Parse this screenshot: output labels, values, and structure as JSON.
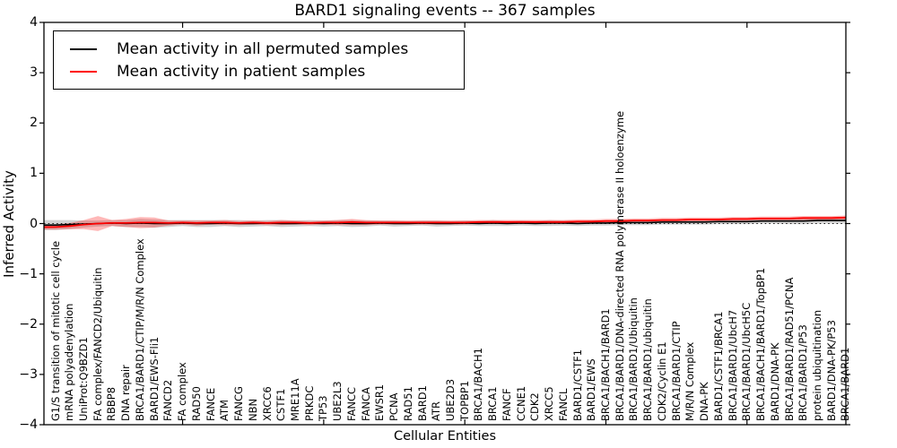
{
  "title": "BARD1 signaling events -- 367 samples",
  "chart_data": {
    "type": "line",
    "title": "BARD1 signaling events -- 367 samples",
    "xlabel": "Cellular Entities",
    "ylabel": "Inferred Activity",
    "ylim": [
      -4,
      4
    ],
    "yticks": [
      4,
      3,
      2,
      1,
      0,
      -1,
      -2,
      -3,
      -4
    ],
    "xtick_indices": [
      9,
      19,
      29,
      39,
      49
    ],
    "grid": false,
    "legend_position": "upper left",
    "zero_line": {
      "y": 0,
      "style": "dotted",
      "color": "#1a1a1a"
    },
    "categories": [
      "G1/S transition of mitotic cell cycle",
      "mRNA polyadenylation",
      "UniProt:Q9BZD1",
      "FA complex/FANCD2/Ubiquitin",
      "RBBP8",
      "DNA repair",
      "BRCA1/BARD1/CTIP/M/R/N Complex",
      "BARD1/EWS-Fli1",
      "FANCD2",
      "FA complex",
      "RAD50",
      "FANCE",
      "ATM",
      "FANCG",
      "NBN",
      "XRCC6",
      "CSTF1",
      "MRE11A",
      "PRKDC",
      "TP53",
      "UBE2L3",
      "FANCC",
      "FANCA",
      "EWSR1",
      "PCNA",
      "RAD51",
      "BARD1",
      "ATR",
      "UBE2D3",
      "TOPBP1",
      "BRCA1/BACH1",
      "BRCA1",
      "FANCF",
      "CCNE1",
      "CDK2",
      "XRCC5",
      "FANCL",
      "BARD1/CSTF1",
      "BARD1/EWS",
      "BRCA1/BACH1/BARD1",
      "BRCA1/BARD1/DNA-directed RNA polymerase II holoenzyme",
      "BRCA1/BARD1/Ubiquitin",
      "BRCA1/BARD1/ubiquitin",
      "CDK2/Cyclin E1",
      "BRCA1/BARD1/CTIP",
      "M/R/N Complex",
      "DNA-PK",
      "BARD1/CSTF1/BRCA1",
      "BRCA1/BARD1/UbcH7",
      "BRCA1/BARD1/UbcH5C",
      "BRCA1/BACH1/BARD1/TopBP1",
      "BARD1/DNA-PK",
      "BRCA1/BARD1/RAD51/PCNA",
      "BRCA1/BARD1/P53",
      "protein ubiquitination",
      "BARD1/DNA-PK/P53",
      "BRCA1/BARD1"
    ],
    "series": [
      {
        "name": "Mean activity in all permuted samples",
        "color": "#000000",
        "band_color": "rgba(128,128,128,0.35)",
        "values": [
          -0.03,
          -0.02,
          -0.01,
          0.0,
          0.01,
          0.0,
          0.01,
          0.0,
          0.0,
          0.01,
          0.0,
          0.0,
          0.01,
          0.0,
          0.0,
          0.01,
          0.0,
          0.0,
          0.01,
          0.0,
          0.01,
          0.0,
          0.0,
          0.01,
          0.0,
          0.0,
          0.01,
          0.0,
          0.0,
          0.01,
          0.0,
          0.01,
          0.0,
          0.01,
          0.0,
          0.01,
          0.01,
          0.0,
          0.01,
          0.01,
          0.02,
          0.02,
          0.02,
          0.03,
          0.03,
          0.03,
          0.03,
          0.04,
          0.04,
          0.04,
          0.05,
          0.05,
          0.05,
          0.05,
          0.06,
          0.06,
          0.06
        ],
        "band_halfwidth": [
          0.1,
          0.09,
          0.07,
          0.06,
          0.06,
          0.07,
          0.08,
          0.08,
          0.07,
          0.06,
          0.07,
          0.07,
          0.06,
          0.07,
          0.06,
          0.06,
          0.07,
          0.06,
          0.06,
          0.06,
          0.06,
          0.07,
          0.06,
          0.05,
          0.06,
          0.05,
          0.05,
          0.06,
          0.05,
          0.05,
          0.05,
          0.06,
          0.05,
          0.05,
          0.05,
          0.06,
          0.05,
          0.05,
          0.05,
          0.05,
          0.05,
          0.05,
          0.05,
          0.05,
          0.05,
          0.05,
          0.05,
          0.05,
          0.05,
          0.05,
          0.05,
          0.05,
          0.06,
          0.06,
          0.06,
          0.06,
          0.06
        ]
      },
      {
        "name": "Mean activity in patient samples",
        "color": "#ff0000",
        "band_color": "rgba(255,0,0,0.28)",
        "values": [
          -0.07,
          -0.05,
          -0.02,
          0.0,
          0.01,
          0.01,
          0.02,
          0.02,
          0.01,
          0.02,
          0.01,
          0.02,
          0.02,
          0.01,
          0.02,
          0.01,
          0.02,
          0.02,
          0.01,
          0.02,
          0.02,
          0.03,
          0.02,
          0.02,
          0.02,
          0.02,
          0.02,
          0.02,
          0.02,
          0.02,
          0.03,
          0.03,
          0.03,
          0.03,
          0.03,
          0.03,
          0.03,
          0.04,
          0.04,
          0.05,
          0.05,
          0.06,
          0.06,
          0.07,
          0.07,
          0.08,
          0.08,
          0.08,
          0.09,
          0.09,
          0.1,
          0.1,
          0.1,
          0.11,
          0.11,
          0.11,
          0.12
        ],
        "band_halfwidth": [
          0.05,
          0.06,
          0.09,
          0.15,
          0.06,
          0.08,
          0.11,
          0.1,
          0.05,
          0.04,
          0.05,
          0.04,
          0.05,
          0.04,
          0.04,
          0.04,
          0.05,
          0.04,
          0.04,
          0.04,
          0.05,
          0.06,
          0.05,
          0.04,
          0.04,
          0.04,
          0.04,
          0.04,
          0.04,
          0.04,
          0.04,
          0.04,
          0.04,
          0.04,
          0.04,
          0.04,
          0.04,
          0.04,
          0.04,
          0.04,
          0.04,
          0.04,
          0.04,
          0.04,
          0.04,
          0.04,
          0.04,
          0.04,
          0.04,
          0.04,
          0.04,
          0.04,
          0.04,
          0.04,
          0.04,
          0.04,
          0.04
        ]
      }
    ]
  }
}
